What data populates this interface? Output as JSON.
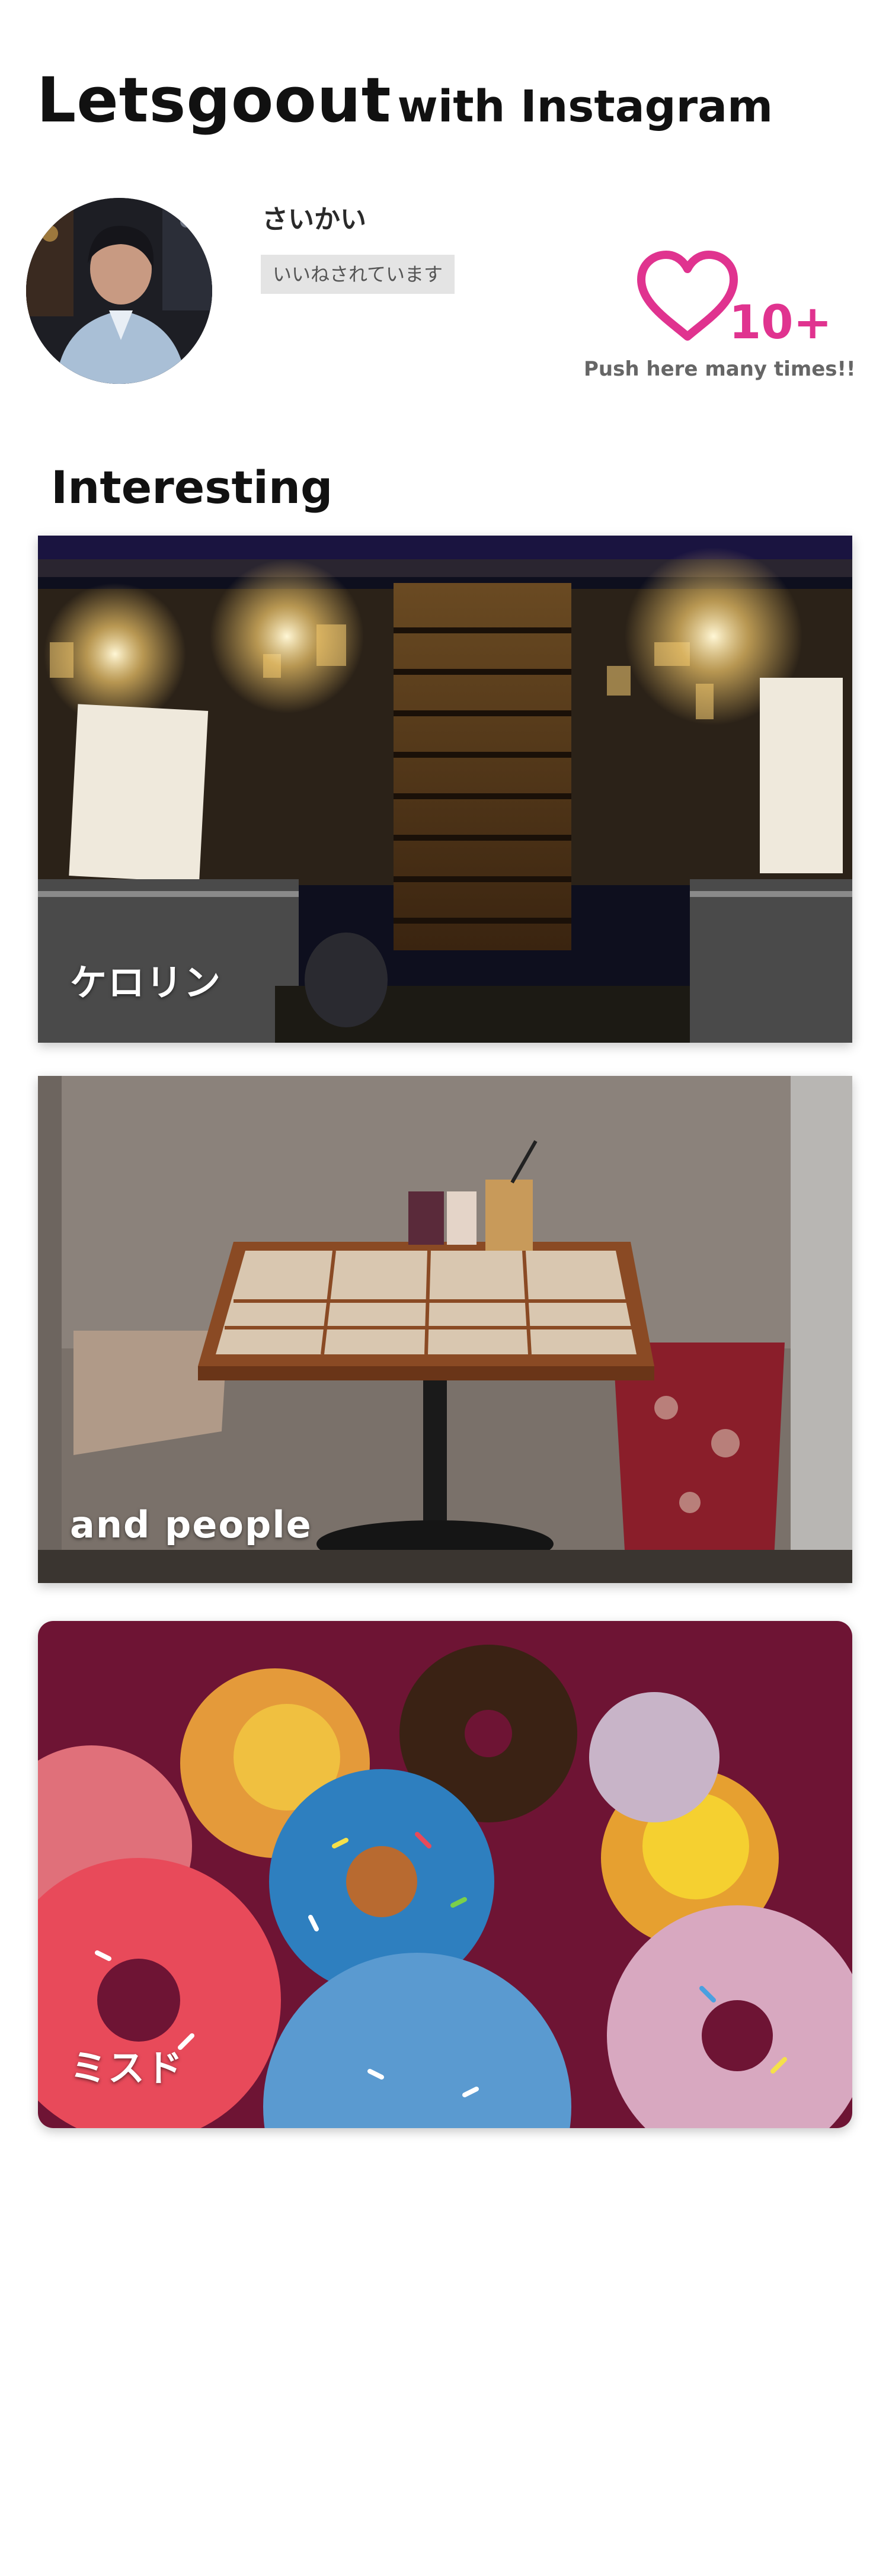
{
  "header": {
    "brand": "Letsgoout",
    "subtitle": "with Instagram"
  },
  "profile": {
    "username": "さいかい",
    "like_status": "いいねされています",
    "like_count": "10+",
    "push_hint": "Push here many times!!",
    "accent_color": "#e0338f"
  },
  "section": {
    "heading": "Interesting"
  },
  "cards": [
    {
      "label": "ケロリン"
    },
    {
      "label": "and people"
    },
    {
      "label": "ミスド"
    }
  ],
  "icons": {
    "like": "heart-icon"
  }
}
